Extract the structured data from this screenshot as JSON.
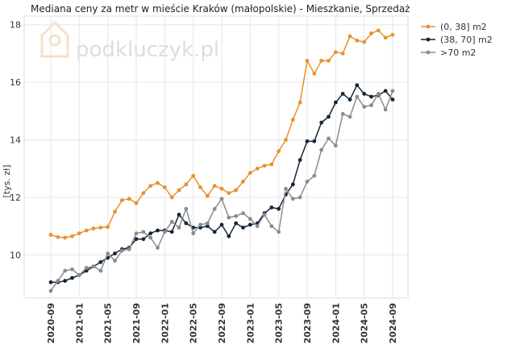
{
  "chart_data": {
    "type": "line",
    "title": "Mediana ceny za metr w mieście Kraków (małopolskie) - Mieszkanie, Sprzedaż",
    "ylabel": "[tys. zł]",
    "xlabel": "",
    "watermark": "podkluczyk.pl",
    "ylim": [
      8.5,
      18.3
    ],
    "yticks": [
      10,
      12,
      14,
      16,
      18
    ],
    "x_start": "2020-09",
    "xticks": [
      "2020-09",
      "2021-01",
      "2021-05",
      "2021-09",
      "2022-01",
      "2022-05",
      "2022-09",
      "2023-01",
      "2023-05",
      "2023-09",
      "2024-01",
      "2024-05",
      "2024-09"
    ],
    "grid": true,
    "legend_position": "right",
    "series": [
      {
        "name": "(0, 38] m2",
        "color": "#e8912d",
        "values": [
          10.7,
          10.62,
          10.6,
          10.65,
          10.75,
          10.85,
          10.92,
          10.95,
          10.97,
          11.5,
          11.9,
          11.95,
          11.8,
          12.15,
          12.4,
          12.5,
          12.35,
          12.0,
          12.25,
          12.45,
          12.75,
          12.35,
          12.05,
          12.4,
          12.3,
          12.15,
          12.25,
          12.55,
          12.85,
          13.0,
          13.1,
          13.15,
          13.6,
          14.0,
          14.7,
          15.3,
          16.75,
          16.3,
          16.75,
          16.75,
          17.05,
          17.0,
          17.6,
          17.45,
          17.4,
          17.7,
          17.8,
          17.55,
          17.65
        ]
      },
      {
        "name": "(38, 70] m2",
        "color": "#15253a",
        "values": [
          9.05,
          9.05,
          9.1,
          9.2,
          9.3,
          9.45,
          9.6,
          9.75,
          9.9,
          10.05,
          10.2,
          10.25,
          10.55,
          10.55,
          10.75,
          10.85,
          10.85,
          10.8,
          11.4,
          11.1,
          10.95,
          10.95,
          11.0,
          10.8,
          11.05,
          10.65,
          11.1,
          10.95,
          11.05,
          11.1,
          11.45,
          11.65,
          11.6,
          12.1,
          12.45,
          13.3,
          13.95,
          13.95,
          14.6,
          14.8,
          15.3,
          15.6,
          15.4,
          15.9,
          15.6,
          15.5,
          15.55,
          15.7,
          15.4
        ]
      },
      {
        "name": ">70 m2",
        "color": "#8c8c8c",
        "values": [
          8.75,
          9.1,
          9.45,
          9.5,
          9.3,
          9.55,
          9.6,
          9.45,
          10.05,
          9.8,
          10.15,
          10.2,
          10.75,
          10.8,
          10.6,
          10.25,
          10.8,
          11.15,
          10.95,
          11.6,
          10.75,
          11.05,
          11.1,
          11.6,
          11.95,
          11.3,
          11.35,
          11.45,
          11.25,
          11.0,
          11.4,
          11.0,
          10.8,
          12.3,
          11.95,
          12.0,
          12.55,
          12.75,
          13.65,
          14.05,
          13.8,
          14.9,
          14.8,
          15.5,
          15.15,
          15.2,
          15.6,
          15.05,
          15.7
        ]
      }
    ]
  }
}
